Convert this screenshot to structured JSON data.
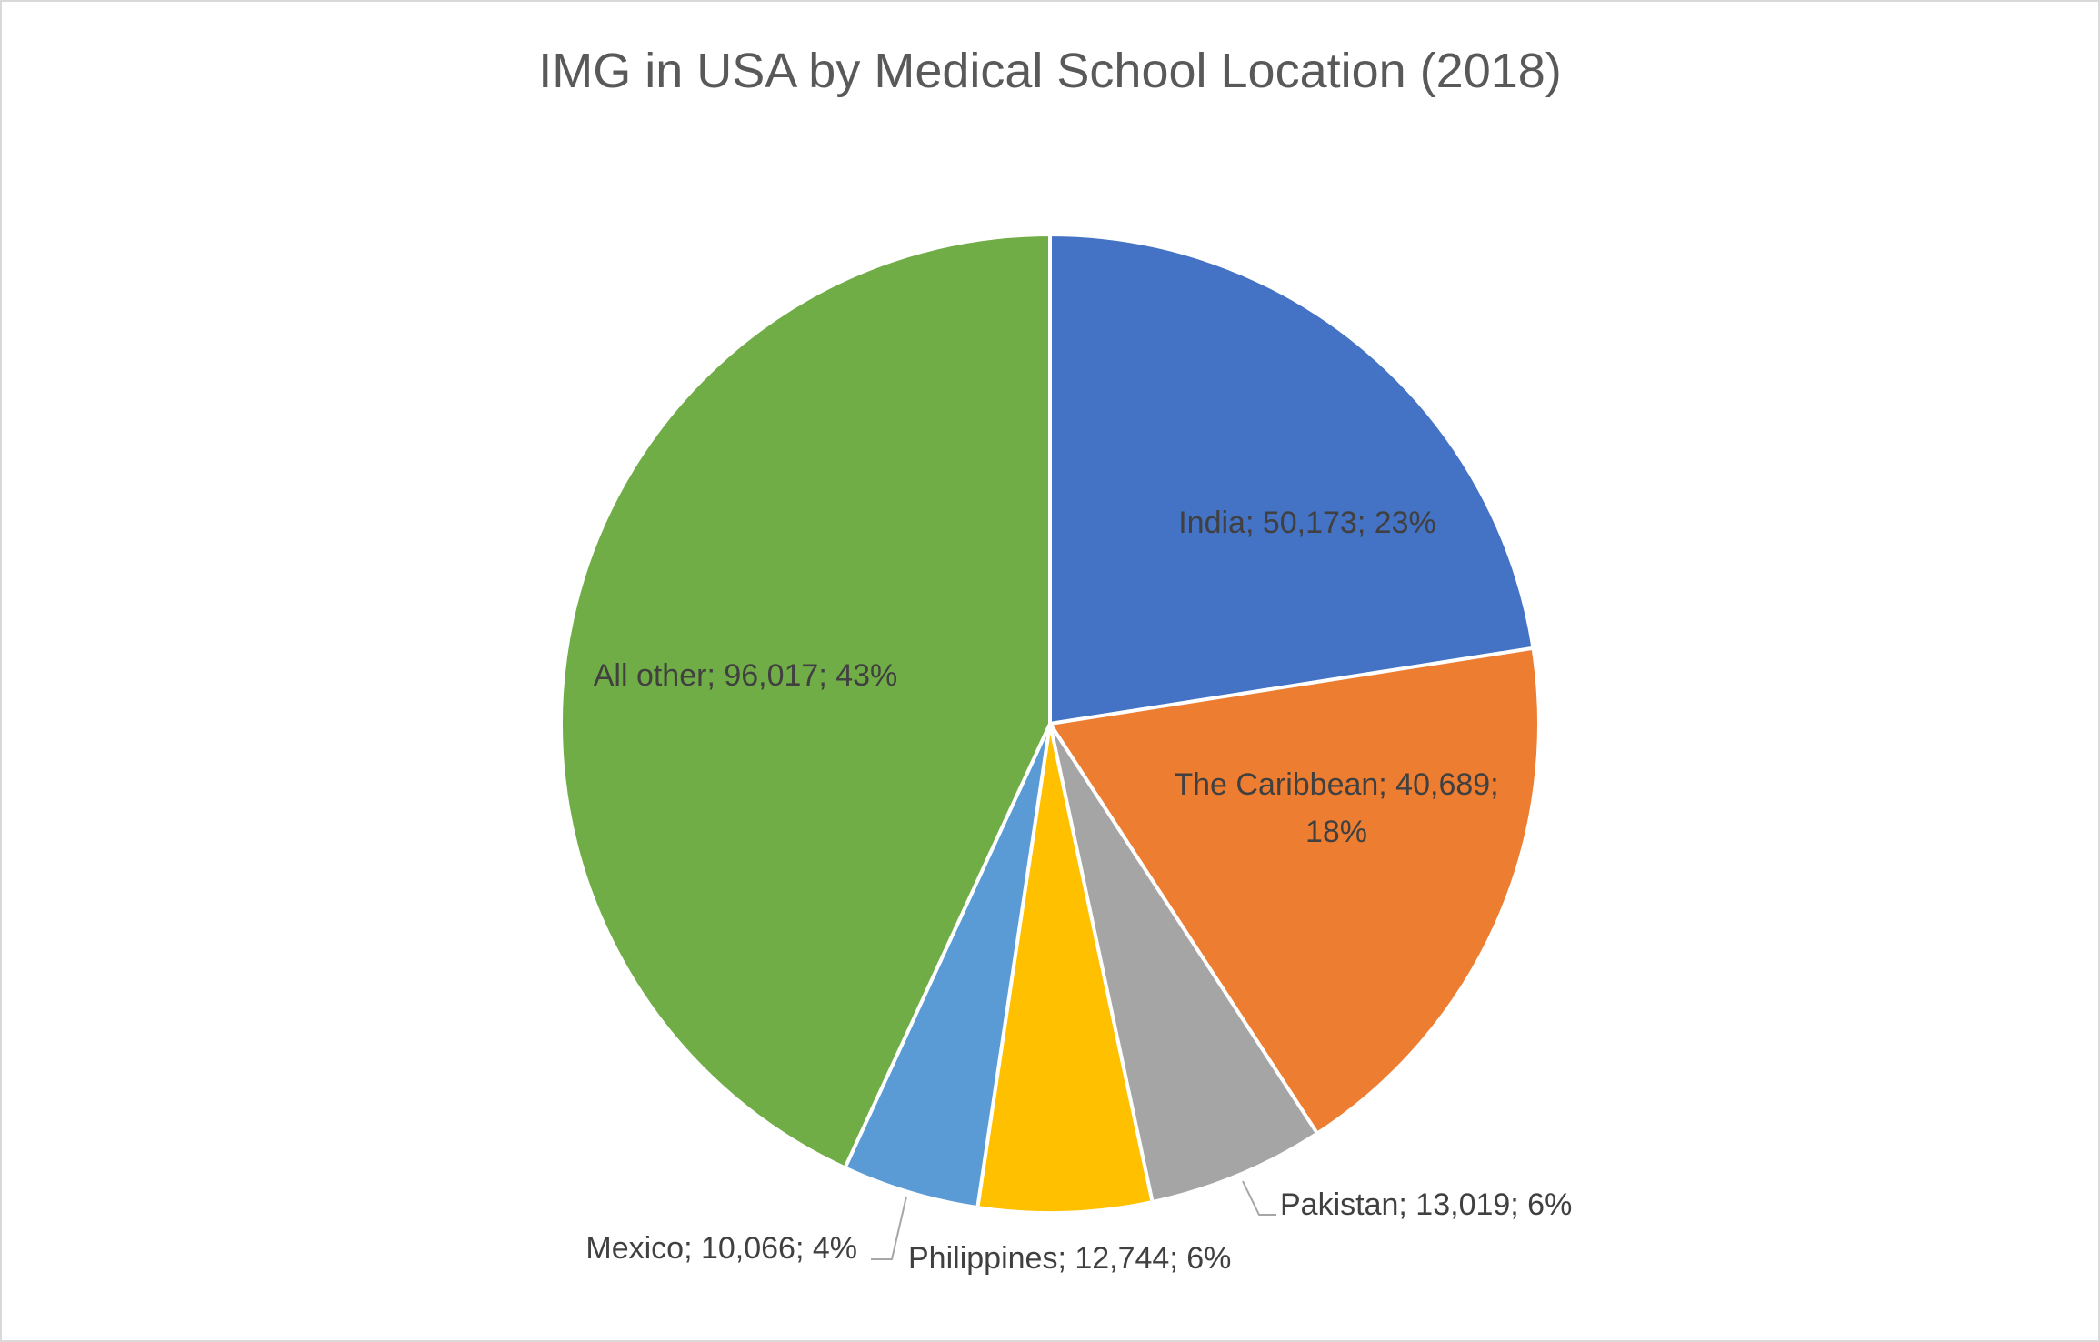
{
  "chart_data": {
    "type": "pie",
    "title": "IMG in USA by Medical School Location (2018)",
    "slices": [
      {
        "name": "India",
        "value": 50173,
        "percent": "23%",
        "color": "#4472C4",
        "label_lines": [
          "India; 50,173; 23%"
        ]
      },
      {
        "name": "The Caribbean",
        "value": 40689,
        "percent": "18%",
        "color": "#ED7D31",
        "label_lines": [
          "The Caribbean; 40,689;",
          "18%"
        ]
      },
      {
        "name": "Pakistan",
        "value": 13019,
        "percent": "6%",
        "color": "#A5A5A5",
        "label_lines": [
          "Pakistan; 13,019; 6%"
        ]
      },
      {
        "name": "Philippines",
        "value": 12744,
        "percent": "6%",
        "color": "#FFC000",
        "label_lines": [
          "Philippines; 12,744; 6%"
        ]
      },
      {
        "name": "Mexico",
        "value": 10066,
        "percent": "4%",
        "color": "#5B9BD5",
        "label_lines": [
          "Mexico; 10,066; 4%"
        ]
      },
      {
        "name": "All other",
        "value": 96017,
        "percent": "43%",
        "color": "#70AD47",
        "label_lines": [
          "All other; 96,017; 43%"
        ]
      }
    ],
    "start_angle_deg": 0,
    "direction": "clockwise",
    "legend": "none"
  }
}
